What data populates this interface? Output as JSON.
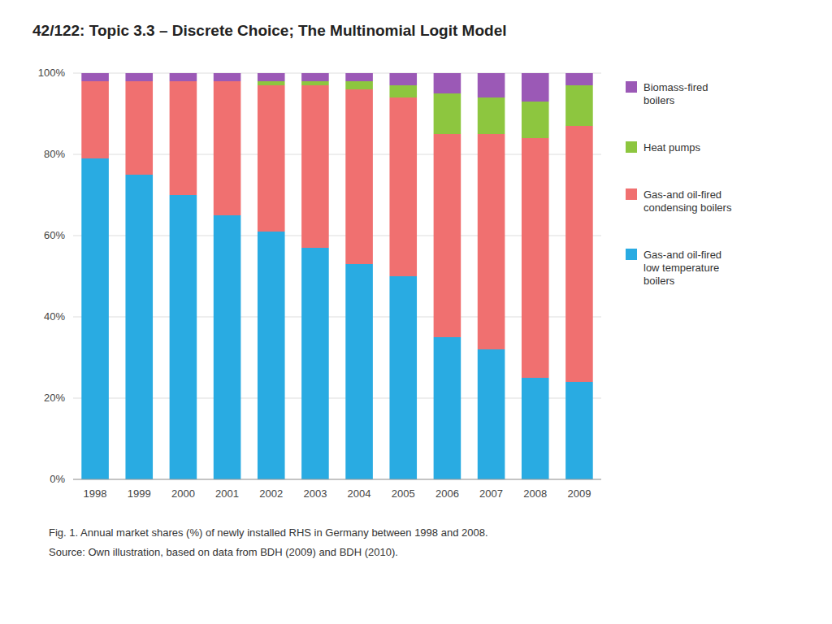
{
  "chart_data": {
    "type": "bar",
    "stacked": true,
    "title": "42/122: Topic 3.3 – Discrete Choice; The Multinomial Logit Model",
    "annotations": [
      "Fig. 1. Annual market shares (%) of newly installed RHS in Germany between 1998 and 2008.",
      "Source: Own illustration, based on data from BDH (2009) and BDH (2010)."
    ],
    "categories": [
      "1998",
      "1999",
      "2000",
      "2001",
      "2002",
      "2003",
      "2004",
      "2005",
      "2006",
      "2007",
      "2008",
      "2009"
    ],
    "series": [
      {
        "name": "Gas-and oil-fired\nlow temperature\nboilers",
        "color": "#29ABE2",
        "values": [
          79,
          75,
          70,
          65,
          61,
          57,
          53,
          50,
          35,
          32,
          25,
          24
        ]
      },
      {
        "name": "Gas-and oil-fired\ncondensing boilers",
        "color": "#F07070",
        "values": [
          19,
          23,
          28,
          33,
          36,
          40,
          43,
          44,
          50,
          53,
          59,
          63
        ]
      },
      {
        "name": "Heat pumps",
        "color": "#8DC63F",
        "values": [
          0,
          0,
          0,
          0,
          1,
          1,
          2,
          3,
          10,
          9,
          9,
          10
        ]
      },
      {
        "name": "Biomass-fired\nboilers",
        "color": "#9B59B6",
        "values": [
          2,
          2,
          2,
          2,
          2,
          2,
          2,
          3,
          5,
          6,
          7,
          3
        ]
      }
    ],
    "ylim": [
      0,
      100
    ],
    "yticks": [
      {
        "value": 0,
        "label": "0%"
      },
      {
        "value": 20,
        "label": "20%"
      },
      {
        "value": 40,
        "label": "40%"
      },
      {
        "value": 60,
        "label": "60%"
      },
      {
        "value": 80,
        "label": "80%"
      },
      {
        "value": 100,
        "label": "100%"
      }
    ],
    "grid": true,
    "legend": "right"
  }
}
